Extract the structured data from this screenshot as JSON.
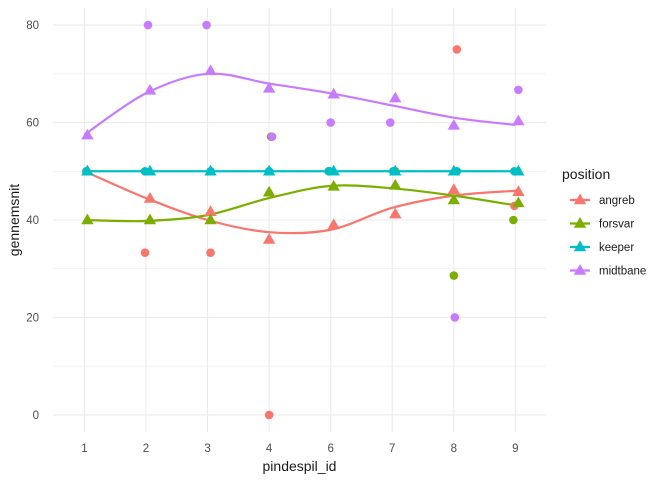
{
  "chart_data": {
    "type": "scatter",
    "xlabel": "pindespil_id",
    "ylabel": "gennemsnit",
    "x_categories": [
      "1",
      "2",
      "3",
      "4",
      "6",
      "7",
      "8",
      "9"
    ],
    "ylim": [
      -3.5,
      83.5
    ],
    "y_ticks": [
      0,
      20,
      40,
      60,
      80
    ],
    "grid": true,
    "legend_title": "position",
    "legend_position": "right",
    "series": [
      {
        "name": "angreb",
        "color": "#F8766D",
        "points": [
          {
            "x": "1",
            "y": 50
          },
          {
            "x": "2",
            "y": 33.3
          },
          {
            "x": "3",
            "y": 33.3
          },
          {
            "x": "4",
            "y": 0
          },
          {
            "x": "6",
            "y": 50
          },
          {
            "x": "7",
            "y": 50
          },
          {
            "x": "8",
            "y": 75
          },
          {
            "x": "9",
            "y": 42.9
          }
        ],
        "mean_points": [
          {
            "x": "1",
            "y": 50
          },
          {
            "x": "2",
            "y": 44.4
          },
          {
            "x": "3",
            "y": 41.7
          },
          {
            "x": "4",
            "y": 36
          },
          {
            "x": "6",
            "y": 39
          },
          {
            "x": "7",
            "y": 41.2
          },
          {
            "x": "8",
            "y": 46.2
          },
          {
            "x": "9",
            "y": 45.8
          }
        ],
        "smooth": [
          {
            "x": "1",
            "y": 50
          },
          {
            "x": "2",
            "y": 44.5
          },
          {
            "x": "3",
            "y": 40
          },
          {
            "x": "4",
            "y": 37.5
          },
          {
            "x": "6",
            "y": 38
          },
          {
            "x": "7",
            "y": 42.5
          },
          {
            "x": "8",
            "y": 45
          },
          {
            "x": "9",
            "y": 46
          }
        ]
      },
      {
        "name": "forsvar",
        "color": "#7CAE00",
        "points": [
          {
            "x": "4",
            "y": 57.1
          },
          {
            "x": "6",
            "y": 50
          },
          {
            "x": "7",
            "y": 50
          },
          {
            "x": "8",
            "y": 28.6
          },
          {
            "x": "9",
            "y": 40
          }
        ],
        "mean_points": [
          {
            "x": "1",
            "y": 40
          },
          {
            "x": "2",
            "y": 40
          },
          {
            "x": "3",
            "y": 40
          },
          {
            "x": "4",
            "y": 45.7
          },
          {
            "x": "6",
            "y": 46.9
          },
          {
            "x": "7",
            "y": 47.1
          },
          {
            "x": "8",
            "y": 44.1
          },
          {
            "x": "9",
            "y": 43.5
          }
        ],
        "smooth": [
          {
            "x": "1",
            "y": 40
          },
          {
            "x": "2",
            "y": 39.8
          },
          {
            "x": "3",
            "y": 41
          },
          {
            "x": "4",
            "y": 44.5
          },
          {
            "x": "6",
            "y": 47
          },
          {
            "x": "7",
            "y": 46.5
          },
          {
            "x": "8",
            "y": 45
          },
          {
            "x": "9",
            "y": 43
          }
        ]
      },
      {
        "name": "keeper",
        "color": "#00BFC4",
        "points": [
          {
            "x": "1",
            "y": 50
          },
          {
            "x": "2",
            "y": 50
          },
          {
            "x": "3",
            "y": 50
          },
          {
            "x": "4",
            "y": 50
          },
          {
            "x": "6",
            "y": 50
          },
          {
            "x": "7",
            "y": 50
          },
          {
            "x": "8",
            "y": 50
          },
          {
            "x": "9",
            "y": 50
          }
        ],
        "mean_points": [
          {
            "x": "1",
            "y": 50
          },
          {
            "x": "2",
            "y": 50
          },
          {
            "x": "3",
            "y": 50
          },
          {
            "x": "4",
            "y": 50
          },
          {
            "x": "6",
            "y": 50
          },
          {
            "x": "7",
            "y": 50
          },
          {
            "x": "8",
            "y": 50
          },
          {
            "x": "9",
            "y": 50
          }
        ],
        "smooth": [
          {
            "x": "1",
            "y": 50
          },
          {
            "x": "9",
            "y": 50
          }
        ]
      },
      {
        "name": "midtbane",
        "color": "#C77CFF",
        "points": [
          {
            "x": "2",
            "y": 80
          },
          {
            "x": "3",
            "y": 80
          },
          {
            "x": "4",
            "y": 57.1
          },
          {
            "x": "6",
            "y": 60
          },
          {
            "x": "7",
            "y": 60
          },
          {
            "x": "8",
            "y": 20
          },
          {
            "x": "9",
            "y": 66.7
          }
        ],
        "mean_points": [
          {
            "x": "1",
            "y": 57.4
          },
          {
            "x": "2",
            "y": 66.6
          },
          {
            "x": "3",
            "y": 70.6
          },
          {
            "x": "4",
            "y": 67
          },
          {
            "x": "6",
            "y": 65.8
          },
          {
            "x": "7",
            "y": 65
          },
          {
            "x": "8",
            "y": 59.4
          },
          {
            "x": "9",
            "y": 60.3
          }
        ],
        "smooth": [
          {
            "x": "1",
            "y": 57.5
          },
          {
            "x": "2",
            "y": 66
          },
          {
            "x": "3",
            "y": 70
          },
          {
            "x": "4",
            "y": 68
          },
          {
            "x": "6",
            "y": 66
          },
          {
            "x": "7",
            "y": 63.5
          },
          {
            "x": "8",
            "y": 61
          },
          {
            "x": "9",
            "y": 59.5
          }
        ]
      }
    ]
  }
}
